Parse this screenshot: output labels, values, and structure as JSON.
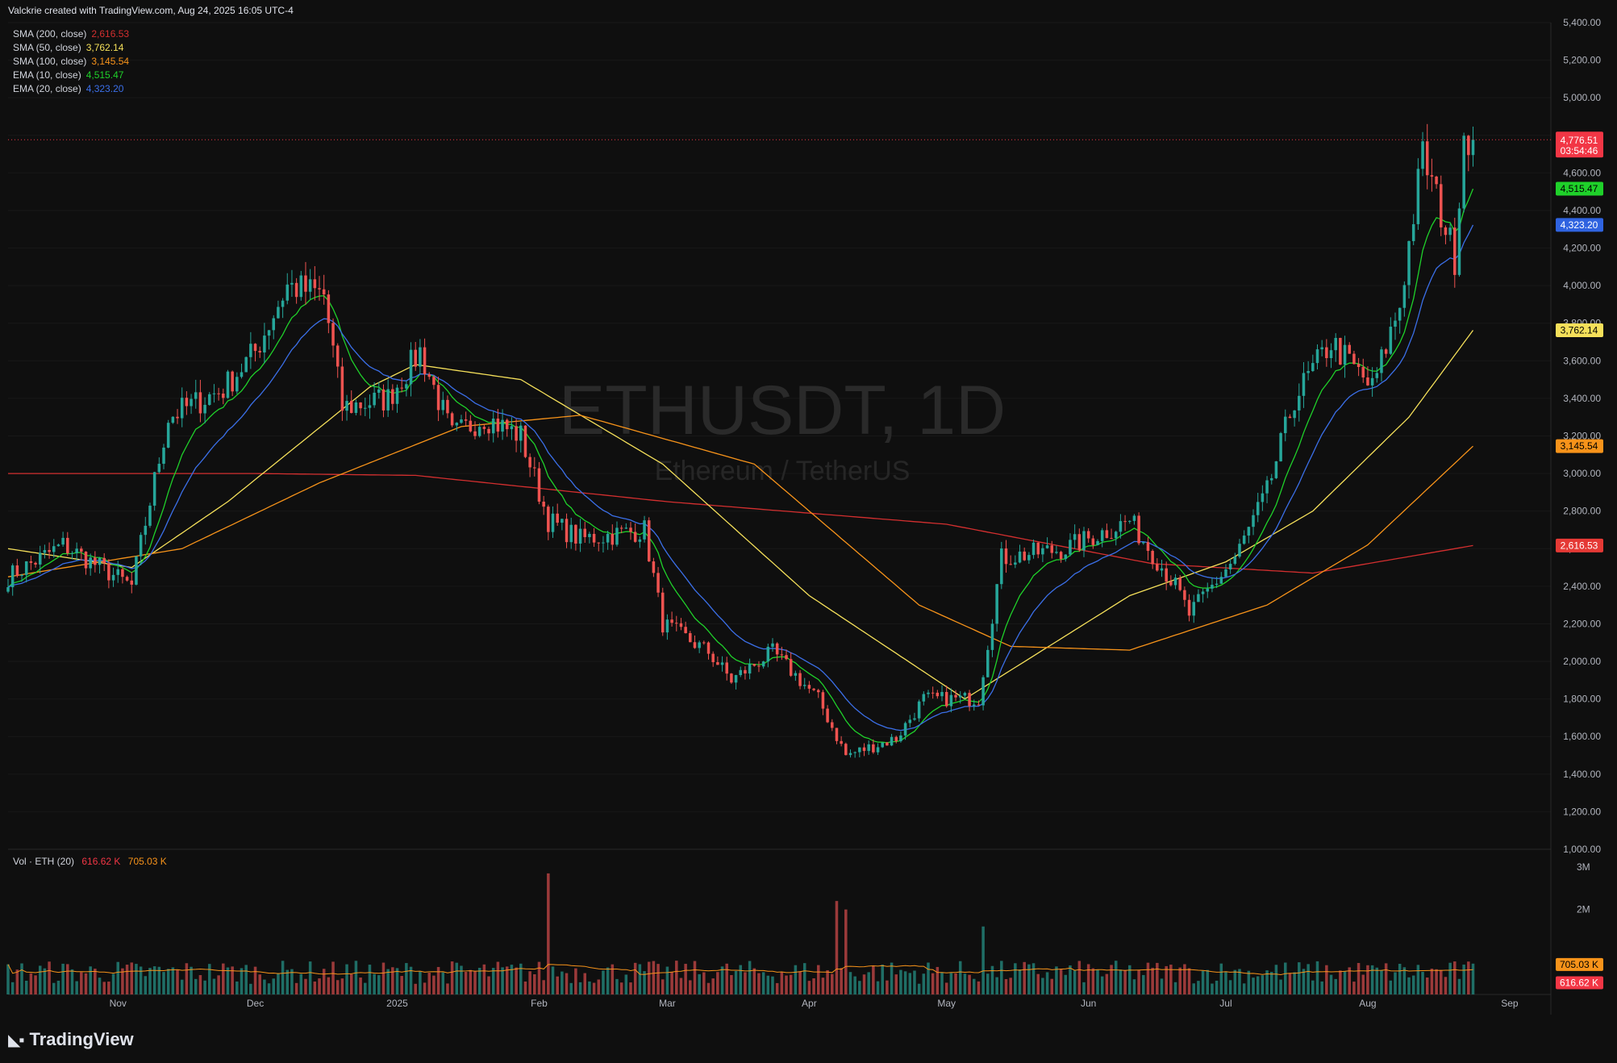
{
  "header": {
    "text": "Valckrie created with TradingView.com, Aug 24, 2025 16:05 UTC-4"
  },
  "watermark": {
    "symbol": "ETHUSDT, 1D",
    "name": "Ethereum / TetherUS"
  },
  "legend": [
    {
      "label": "SMA (200, close)",
      "value": "2,616.53",
      "color": "#d32f2f"
    },
    {
      "label": "SMA (50, close)",
      "value": "3,762.14",
      "color": "#f5e05a"
    },
    {
      "label": "SMA (100, close)",
      "value": "3,145.54",
      "color": "#f7931a"
    },
    {
      "label": "EMA (10, close)",
      "value": "4,515.47",
      "color": "#1fd12a"
    },
    {
      "label": "EMA (20, close)",
      "value": "4,323.20",
      "color": "#3b6fe8"
    }
  ],
  "volume_legend": {
    "label": "Vol · ETH (20)",
    "value": "616.62 K",
    "ma_value": "705.03 K"
  },
  "price_axis": {
    "ticks": [
      "5,400.00",
      "5,200.00",
      "5,000.00",
      "4,800.00",
      "4,600.00",
      "4,400.00",
      "4,200.00",
      "4,000.00",
      "3,800.00",
      "3,600.00",
      "3,400.00",
      "3,200.00",
      "3,000.00",
      "2,800.00",
      "2,600.00",
      "2,400.00",
      "2,200.00",
      "2,000.00",
      "1,800.00",
      "1,600.00",
      "1,400.00",
      "1,200.00",
      "1,000.00"
    ],
    "current_price": "4,776.51",
    "countdown": "03:54:46",
    "badges": [
      {
        "value": "4,515.47",
        "color": "#1fd12a",
        "text_color": "#000000"
      },
      {
        "value": "4,323.20",
        "color": "#2f63e0",
        "text_color": "#ffffff"
      },
      {
        "value": "3,762.14",
        "color": "#f5e05a",
        "text_color": "#000000"
      },
      {
        "value": "3,145.54",
        "color": "#f7931a",
        "text_color": "#000000"
      },
      {
        "value": "2,616.53",
        "color": "#e53935",
        "text_color": "#ffffff"
      }
    ]
  },
  "volume_axis": {
    "ticks": [
      "3M",
      "2M"
    ],
    "badges": [
      {
        "value": "705.03 K",
        "color": "#f7931a",
        "text_color": "#000000"
      },
      {
        "value": "616.62 K",
        "color": "#f23645",
        "text_color": "#ffffff"
      }
    ]
  },
  "time_axis": {
    "labels": [
      "Nov",
      "Dec",
      "2025",
      "Feb",
      "Mar",
      "Apr",
      "May",
      "Jun",
      "Jul",
      "Aug",
      "Sep"
    ]
  },
  "footer": {
    "brand": "TradingView"
  },
  "colors": {
    "up": "#26a69a",
    "down": "#ef5350",
    "background": "#0f0f0f",
    "grid": "#1c1c1c"
  },
  "chart_data": {
    "type": "candlestick",
    "symbol": "ETHUSDT",
    "interval": "1D",
    "ylim": [
      1000,
      5400
    ],
    "x_range": [
      "2024-10-08",
      "2025-09-10"
    ],
    "anchors": [
      [
        "2024-10-08",
        2450
      ],
      [
        "2024-10-20",
        2620
      ],
      [
        "2024-11-04",
        2400
      ],
      [
        "2024-11-12",
        3300
      ],
      [
        "2024-11-24",
        3450
      ],
      [
        "2024-12-01",
        3650
      ],
      [
        "2024-12-08",
        4000
      ],
      [
        "2024-12-16",
        3950
      ],
      [
        "2024-12-20",
        3350
      ],
      [
        "2024-12-30",
        3400
      ],
      [
        "2025-01-06",
        3650
      ],
      [
        "2025-01-13",
        3200
      ],
      [
        "2025-01-20",
        3300
      ],
      [
        "2025-01-28",
        3200
      ],
      [
        "2025-02-03",
        2750
      ],
      [
        "2025-02-10",
        2650
      ],
      [
        "2025-02-24",
        2700
      ],
      [
        "2025-02-28",
        2200
      ],
      [
        "2025-03-10",
        2050
      ],
      [
        "2025-03-15",
        1900
      ],
      [
        "2025-03-24",
        2050
      ],
      [
        "2025-04-03",
        1800
      ],
      [
        "2025-04-09",
        1500
      ],
      [
        "2025-04-20",
        1590
      ],
      [
        "2025-04-26",
        1800
      ],
      [
        "2025-05-08",
        1800
      ],
      [
        "2025-05-13",
        2550
      ],
      [
        "2025-05-27",
        2600
      ],
      [
        "2025-06-10",
        2750
      ],
      [
        "2025-06-20",
        2400
      ],
      [
        "2025-06-23",
        2250
      ],
      [
        "2025-07-03",
        2550
      ],
      [
        "2025-07-10",
        2900
      ],
      [
        "2025-07-16",
        3400
      ],
      [
        "2025-07-24",
        3700
      ],
      [
        "2025-08-02",
        3450
      ],
      [
        "2025-08-08",
        3900
      ],
      [
        "2025-08-13",
        4700
      ],
      [
        "2025-08-20",
        4150
      ],
      [
        "2025-08-22",
        4820
      ],
      [
        "2025-08-24",
        4776.51
      ]
    ],
    "last_close": 4776.51,
    "indicators": [
      {
        "name": "SMA (200, close)",
        "last": 2616.53,
        "points": [
          [
            "2024-10-08",
            3000
          ],
          [
            "2024-12-01",
            3000
          ],
          [
            "2025-01-05",
            2990
          ],
          [
            "2025-03-01",
            2850
          ],
          [
            "2025-05-01",
            2730
          ],
          [
            "2025-06-15",
            2520
          ],
          [
            "2025-07-20",
            2470
          ],
          [
            "2025-08-24",
            2616.53
          ]
        ]
      },
      {
        "name": "SMA (50, close)",
        "last": 3762.14,
        "points": [
          [
            "2024-10-08",
            2600
          ],
          [
            "2024-11-04",
            2500
          ],
          [
            "2024-11-25",
            2850
          ],
          [
            "2024-12-26",
            3460
          ],
          [
            "2025-01-05",
            3580
          ],
          [
            "2025-01-28",
            3500
          ],
          [
            "2025-02-28",
            3050
          ],
          [
            "2025-04-01",
            2350
          ],
          [
            "2025-05-05",
            1800
          ],
          [
            "2025-06-10",
            2350
          ],
          [
            "2025-07-01",
            2530
          ],
          [
            "2025-07-20",
            2800
          ],
          [
            "2025-08-10",
            3300
          ],
          [
            "2025-08-24",
            3762.14
          ]
        ]
      },
      {
        "name": "SMA (100, close)",
        "last": 3145.54,
        "points": [
          [
            "2024-10-08",
            2450
          ],
          [
            "2024-11-15",
            2600
          ],
          [
            "2024-12-15",
            2950
          ],
          [
            "2025-01-15",
            3250
          ],
          [
            "2025-02-10",
            3310
          ],
          [
            "2025-03-20",
            3050
          ],
          [
            "2025-04-25",
            2300
          ],
          [
            "2025-05-15",
            2080
          ],
          [
            "2025-06-10",
            2060
          ],
          [
            "2025-07-10",
            2300
          ],
          [
            "2025-08-01",
            2620
          ],
          [
            "2025-08-24",
            3145.54
          ]
        ]
      },
      {
        "name": "EMA (10, close)",
        "last": 4515.47,
        "smoothing": 10
      },
      {
        "name": "EMA (20, close)",
        "last": 4323.2,
        "smoothing": 20
      }
    ],
    "volume": {
      "unit": "ETH",
      "ylim": [
        0,
        3000000
      ],
      "ma_period": 20,
      "last": 616620,
      "ma_last": 705030,
      "spikes": [
        [
          "2025-02-03",
          2850000
        ],
        [
          "2025-04-07",
          2200000
        ],
        [
          "2025-04-09",
          2000000
        ],
        [
          "2025-05-09",
          1600000
        ]
      ]
    }
  }
}
